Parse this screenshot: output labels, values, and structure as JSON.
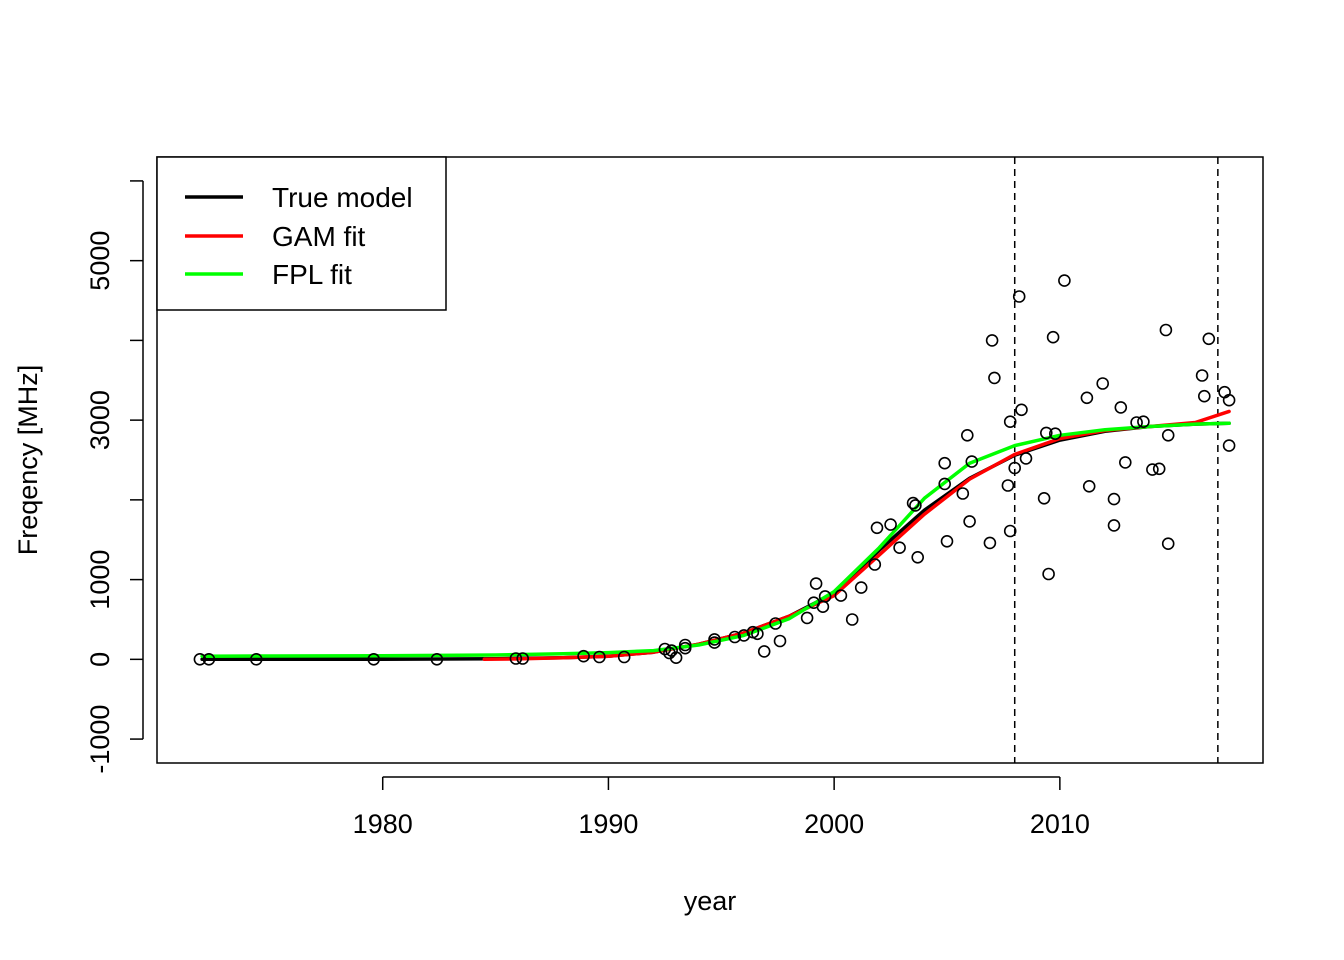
{
  "chart_data": {
    "type": "scatter",
    "title": "",
    "xlabel": "year",
    "ylabel": "Freqency [MHz]",
    "xlim": [
      1970,
      2019
    ],
    "ylim": [
      -1300,
      6300
    ],
    "x_ticks": [
      1980,
      1990,
      2000,
      2010
    ],
    "y_ticks": [
      -1000,
      0,
      1000,
      3000,
      5000
    ],
    "y_minor_ticks": [
      2000,
      4000,
      6000
    ],
    "legend": {
      "position": "top-left",
      "entries": [
        {
          "label": "True model",
          "color": "#000000"
        },
        {
          "label": "GAM fit",
          "color": "#ff0000"
        },
        {
          "label": "FPL fit",
          "color": "#00ff00"
        }
      ]
    },
    "vertical_dashed_lines": [
      2008,
      2017
    ],
    "points": {
      "x": [
        1971.9,
        1972.3,
        1974.4,
        1979.6,
        1982.4,
        1985.9,
        1986.2,
        1988.9,
        1989.6,
        1990.7,
        1992.5,
        1992.7,
        1992.8,
        1993.0,
        1993.4,
        1993.4,
        1994.7,
        1994.7,
        1995.6,
        1996.0,
        1996.4,
        1996.6,
        1996.9,
        1997.4,
        1997.6,
        1998.8,
        1999.1,
        1999.2,
        1999.5,
        1999.6,
        2000.3,
        2000.8,
        2001.2,
        2001.8,
        2001.9,
        2002.5,
        2002.9,
        2003.5,
        2003.6,
        2003.7,
        2004.9,
        2004.9,
        2005.0,
        2005.7,
        2005.9,
        2006.0,
        2006.1,
        2006.9,
        2007.0,
        2007.1,
        2007.7,
        2007.8,
        2007.8,
        2008.0,
        2008.2,
        2008.3,
        2008.5,
        2009.3,
        2009.4,
        2009.5,
        2009.7,
        2009.8,
        2010.2,
        2011.2,
        2011.3,
        2011.9,
        2012.4,
        2012.4,
        2012.7,
        2012.9,
        2013.4,
        2013.7,
        2014.1,
        2014.4,
        2014.7,
        2014.8,
        2014.8,
        2016.3,
        2016.4,
        2016.6,
        2017.3,
        2017.5,
        2017.5
      ],
      "y": [
        0,
        0,
        0,
        0,
        0,
        10,
        10,
        40,
        30,
        30,
        130,
        80,
        110,
        20,
        140,
        180,
        210,
        250,
        280,
        300,
        340,
        320,
        100,
        450,
        230,
        520,
        710,
        950,
        660,
        790,
        800,
        500,
        900,
        1190,
        1650,
        1690,
        1400,
        1960,
        1930,
        1280,
        2460,
        2200,
        1480,
        2080,
        2810,
        1730,
        2480,
        1460,
        4000,
        3530,
        2180,
        1610,
        2980,
        2400,
        4550,
        3130,
        2520,
        2020,
        2840,
        1070,
        4040,
        2830,
        4750,
        3280,
        2170,
        3460,
        1680,
        2010,
        3160,
        2470,
        2970,
        2980,
        2380,
        2390,
        4130,
        2810,
        1450,
        3560,
        3300,
        4020,
        3350,
        3250,
        2680
      ]
    },
    "series": [
      {
        "name": "True model",
        "color": "#000000",
        "x": [
          1972,
          1975,
          1980,
          1985,
          1988,
          1990,
          1992,
          1994,
          1996,
          1998,
          2000,
          2002,
          2004,
          2006,
          2008,
          2010,
          2012,
          2014,
          2016,
          2017.5
        ],
        "y": [
          0,
          0,
          2,
          8,
          20,
          40,
          90,
          190,
          330,
          540,
          830,
          1370,
          1870,
          2270,
          2560,
          2750,
          2860,
          2920,
          2950,
          2960
        ]
      },
      {
        "name": "GAM fit",
        "color": "#ff0000",
        "x": [
          1984.5,
          1986,
          1988,
          1990,
          1992,
          1994,
          1996,
          1998,
          2000,
          2002,
          2004,
          2006,
          2008,
          2010,
          2012,
          2014,
          2016,
          2017.5
        ],
        "y": [
          0,
          5,
          20,
          40,
          90,
          190,
          330,
          540,
          800,
          1310,
          1820,
          2260,
          2570,
          2770,
          2870,
          2920,
          2970,
          3110
        ]
      },
      {
        "name": "FPL fit",
        "color": "#00ff00",
        "x": [
          1972,
          1975,
          1980,
          1985,
          1988,
          1990,
          1992,
          1994,
          1996,
          1998,
          2000,
          2002,
          2004,
          2006,
          2008,
          2010,
          2012,
          2014,
          2016,
          2017.5
        ],
        "y": [
          40,
          42,
          45,
          55,
          70,
          85,
          110,
          180,
          300,
          510,
          850,
          1400,
          2020,
          2460,
          2680,
          2810,
          2880,
          2920,
          2950,
          2960
        ]
      }
    ]
  }
}
